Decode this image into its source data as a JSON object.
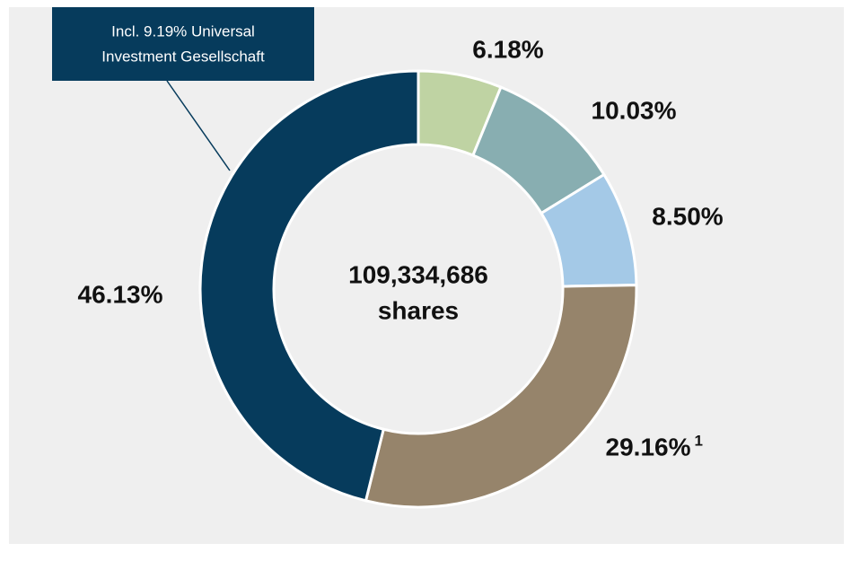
{
  "chart_data": {
    "type": "donut",
    "values": [
      6.18,
      10.03,
      8.5,
      29.16,
      46.13
    ],
    "value_labels": [
      "6.18%",
      "10.03%",
      "8.50%",
      "29.16%",
      "46.13%"
    ],
    "footnote_marks": [
      null,
      null,
      null,
      "1",
      null
    ],
    "colors": [
      "#bfd3a3",
      "#88aeb1",
      "#a4c9e7",
      "#96846b",
      "#063b5c"
    ],
    "center_text": [
      "109,334,686",
      "shares"
    ],
    "annotation": [
      "Incl. 9.19% Universal",
      "Investment Gesellschaft"
    ]
  }
}
